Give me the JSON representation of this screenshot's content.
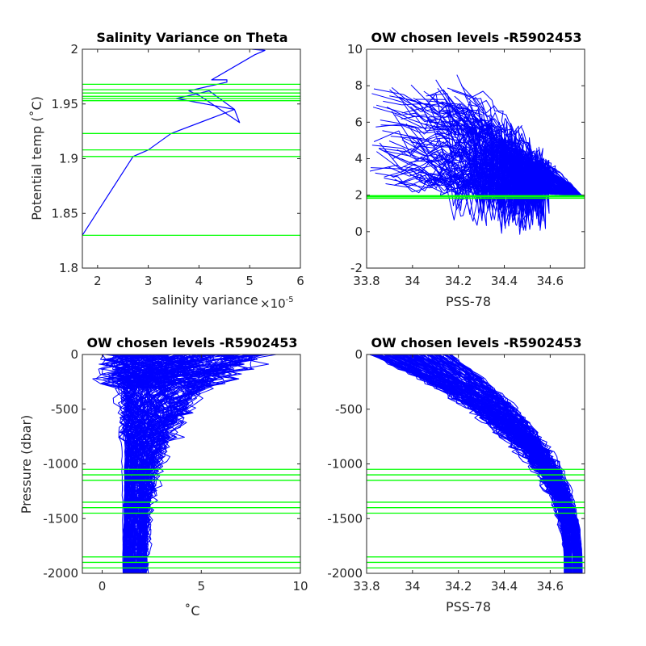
{
  "chart_data": [
    {
      "type": "line",
      "title": "Salinity Variance on Theta",
      "xlabel": "salinity variance",
      "x_exponent_label": "×10",
      "x_exponent": "-5",
      "ylabel_main": "Potential temp (",
      "ylabel_deg": "˚",
      "ylabel_unit": "C)",
      "xlim": [
        1.7,
        6
      ],
      "ylim": [
        1.8,
        2
      ],
      "xticks": [
        "2",
        "3",
        "4",
        "5",
        "6"
      ],
      "yticks": [
        "1.8",
        "1.85",
        "1.9",
        "1.95",
        "2"
      ],
      "series": [
        {
          "color": "#0000ff",
          "x": [
            1.7,
            2.7,
            3.0,
            3.45,
            4.7,
            4.2,
            3.55,
            4.7,
            4.8,
            4.0,
            3.8,
            4.55,
            4.55,
            4.25,
            5.1,
            5.3,
            5.05
          ],
          "y": [
            1.83,
            1.902,
            1.908,
            1.923,
            1.945,
            1.962,
            1.955,
            1.945,
            1.933,
            1.958,
            1.962,
            1.97,
            1.972,
            1.972,
            1.995,
            1.999,
            2.0
          ]
        }
      ],
      "hlines": {
        "color": "#00ff00",
        "values": [
          1.83,
          1.902,
          1.908,
          1.923,
          1.953,
          1.955,
          1.957,
          1.96,
          1.963,
          1.968
        ]
      }
    },
    {
      "type": "line",
      "title": "OW chosen levels -R5902453",
      "xlabel": "PSS-78",
      "xlim": [
        33.8,
        34.75
      ],
      "ylim": [
        -2,
        10
      ],
      "xticks": [
        "33.8",
        "34",
        "34.2",
        "34.4",
        "34.6"
      ],
      "yticks": [
        "-2",
        "0",
        "2",
        "4",
        "6",
        "8",
        "10"
      ],
      "series_color": "#0000ff",
      "hlines": {
        "color": "#00ff00",
        "values": [
          1.83,
          1.902,
          1.908,
          1.923,
          1.953,
          1.955,
          1.957,
          1.96,
          1.963,
          1.968
        ]
      }
    },
    {
      "type": "line",
      "title": "OW chosen levels -R5902453",
      "xlabel": "˚C",
      "ylabel": "Pressure (dbar)",
      "xlim": [
        -1,
        10
      ],
      "ylim": [
        -2000,
        0
      ],
      "xticks": [
        "0",
        "5",
        "10"
      ],
      "yticks": [
        "-2000",
        "-1500",
        "-1000",
        "-500",
        "0"
      ],
      "series_color": "#0000ff",
      "hlines": {
        "color": "#00ff00",
        "values": [
          -1050,
          -1100,
          -1150,
          -1350,
          -1400,
          -1450,
          -1850,
          -1900,
          -1950
        ]
      }
    },
    {
      "type": "line",
      "title": "OW chosen levels -R5902453",
      "xlabel": "PSS-78",
      "xlim": [
        33.8,
        34.75
      ],
      "ylim": [
        -2000,
        0
      ],
      "xticks": [
        "33.8",
        "34",
        "34.2",
        "34.4",
        "34.6"
      ],
      "yticks": [
        "-2000",
        "-1500",
        "-1000",
        "-500",
        "0"
      ],
      "series_color": "#0000ff",
      "hlines": {
        "color": "#00ff00",
        "values": [
          -1050,
          -1100,
          -1150,
          -1350,
          -1400,
          -1450,
          -1850,
          -1900,
          -1950
        ]
      }
    }
  ]
}
